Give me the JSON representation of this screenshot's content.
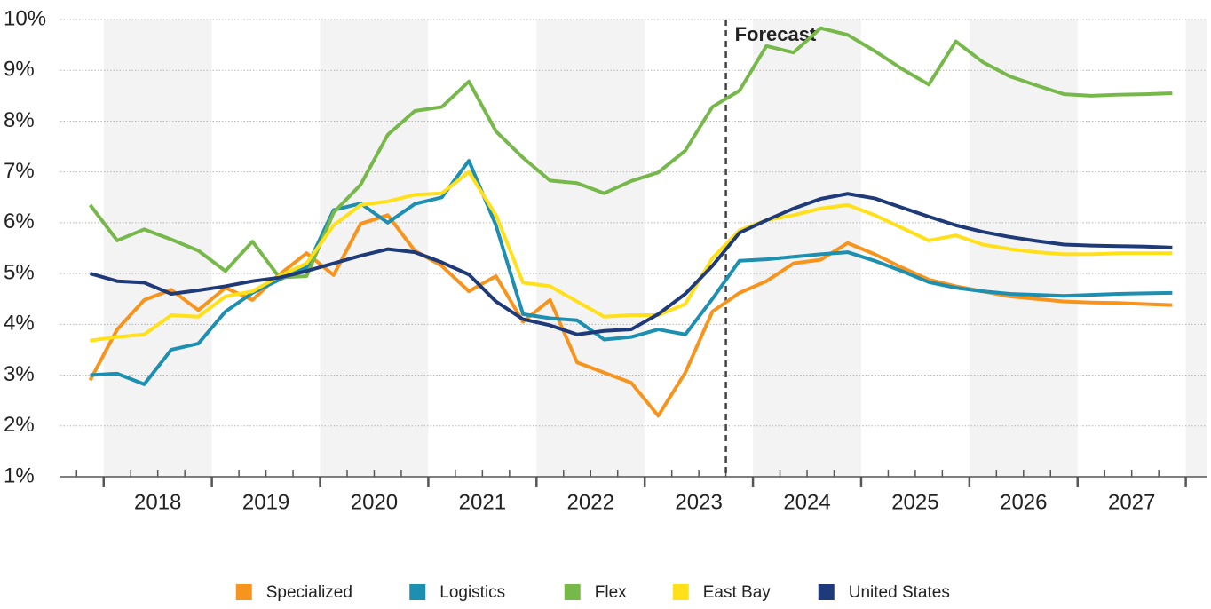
{
  "chart_data": {
    "type": "line",
    "x": [
      2017.875,
      2018.125,
      2018.375,
      2018.625,
      2018.875,
      2019.125,
      2019.375,
      2019.625,
      2019.875,
      2020.125,
      2020.375,
      2020.625,
      2020.875,
      2021.125,
      2021.375,
      2021.625,
      2021.875,
      2022.125,
      2022.375,
      2022.625,
      2022.875,
      2023.125,
      2023.375,
      2023.625,
      2023.875,
      2024.125,
      2024.375,
      2024.625,
      2024.875,
      2025.125,
      2025.375,
      2025.625,
      2025.875,
      2026.125,
      2026.375,
      2026.625,
      2026.875,
      2027.125,
      2027.375,
      2027.625,
      2027.875
    ],
    "xlim": [
      2017.6,
      2028.2
    ],
    "xticks": [
      {
        "value": 2018.5,
        "label": "2018"
      },
      {
        "value": 2019.5,
        "label": "2019"
      },
      {
        "value": 2020.5,
        "label": "2020"
      },
      {
        "value": 2021.5,
        "label": "2021"
      },
      {
        "value": 2022.5,
        "label": "2022"
      },
      {
        "value": 2023.5,
        "label": "2023"
      },
      {
        "value": 2024.5,
        "label": "2024"
      },
      {
        "value": 2025.5,
        "label": "2025"
      },
      {
        "value": 2026.5,
        "label": "2026"
      },
      {
        "value": 2027.5,
        "label": "2027"
      }
    ],
    "ylim": [
      1,
      10
    ],
    "yticks": [
      {
        "value": 1,
        "label": "1%"
      },
      {
        "value": 2,
        "label": "2%"
      },
      {
        "value": 3,
        "label": "3%"
      },
      {
        "value": 4,
        "label": "4%"
      },
      {
        "value": 5,
        "label": "5%"
      },
      {
        "value": 6,
        "label": "6%"
      },
      {
        "value": 7,
        "label": "7%"
      },
      {
        "value": 8,
        "label": "8%"
      },
      {
        "value": 9,
        "label": "9%"
      },
      {
        "value": 10,
        "label": "10%"
      }
    ],
    "grid": true,
    "legend": "bottom",
    "annotations": [
      {
        "text": "Forecast",
        "x": 2023.75
      }
    ],
    "series": [
      {
        "name": "Specialized",
        "color": "#f7941d",
        "values": [
          2.9,
          3.9,
          4.48,
          4.68,
          4.28,
          4.72,
          4.48,
          4.98,
          5.4,
          4.97,
          5.98,
          6.15,
          5.45,
          5.15,
          4.65,
          4.95,
          4.05,
          4.48,
          3.25,
          3.05,
          2.85,
          2.2,
          3.05,
          4.25,
          4.62,
          4.85,
          5.2,
          5.27,
          5.6,
          5.38,
          5.12,
          4.88,
          4.75,
          4.65,
          4.55,
          4.5,
          4.45,
          4.43,
          4.42,
          4.4,
          4.38
        ]
      },
      {
        "name": "Logistics",
        "color": "#1d8fb0",
        "values": [
          3.0,
          3.03,
          2.82,
          3.5,
          3.62,
          4.25,
          4.62,
          4.88,
          5.12,
          6.25,
          6.38,
          6.0,
          6.37,
          6.5,
          7.22,
          5.95,
          4.2,
          4.12,
          4.08,
          3.7,
          3.75,
          3.9,
          3.8,
          4.5,
          5.25,
          5.28,
          5.33,
          5.38,
          5.42,
          5.25,
          5.05,
          4.83,
          4.72,
          4.65,
          4.6,
          4.58,
          4.56,
          4.58,
          4.6,
          4.61,
          4.62
        ]
      },
      {
        "name": "Flex",
        "color": "#77b84a",
        "values": [
          6.35,
          5.65,
          5.87,
          5.67,
          5.45,
          5.05,
          5.63,
          4.92,
          4.95,
          6.2,
          6.75,
          7.73,
          8.2,
          8.28,
          8.78,
          7.8,
          7.28,
          6.83,
          6.78,
          6.58,
          6.82,
          6.99,
          7.42,
          8.28,
          8.6,
          9.48,
          9.35,
          9.83,
          9.7,
          9.38,
          9.03,
          8.72,
          9.57,
          9.16,
          8.88,
          8.7,
          8.53,
          8.5,
          8.52,
          8.53,
          8.55
        ]
      },
      {
        "name": "East Bay",
        "color": "#ffe019",
        "values": [
          3.68,
          3.75,
          3.8,
          4.18,
          4.15,
          4.55,
          4.65,
          4.95,
          5.2,
          5.95,
          6.35,
          6.42,
          6.55,
          6.58,
          7.0,
          6.15,
          4.82,
          4.75,
          4.45,
          4.15,
          4.18,
          4.18,
          4.4,
          5.3,
          5.85,
          6.05,
          6.15,
          6.28,
          6.35,
          6.15,
          5.9,
          5.65,
          5.75,
          5.57,
          5.48,
          5.42,
          5.38,
          5.38,
          5.4,
          5.4,
          5.4
        ]
      },
      {
        "name": "United States",
        "color": "#1f3a78",
        "values": [
          5.0,
          4.85,
          4.82,
          4.6,
          4.67,
          4.75,
          4.85,
          4.92,
          5.05,
          5.2,
          5.35,
          5.48,
          5.42,
          5.22,
          4.98,
          4.45,
          4.1,
          3.98,
          3.8,
          3.87,
          3.9,
          4.2,
          4.6,
          5.15,
          5.8,
          6.05,
          6.28,
          6.47,
          6.57,
          6.48,
          6.3,
          6.12,
          5.95,
          5.82,
          5.72,
          5.64,
          5.57,
          5.55,
          5.54,
          5.53,
          5.51
        ]
      }
    ]
  }
}
